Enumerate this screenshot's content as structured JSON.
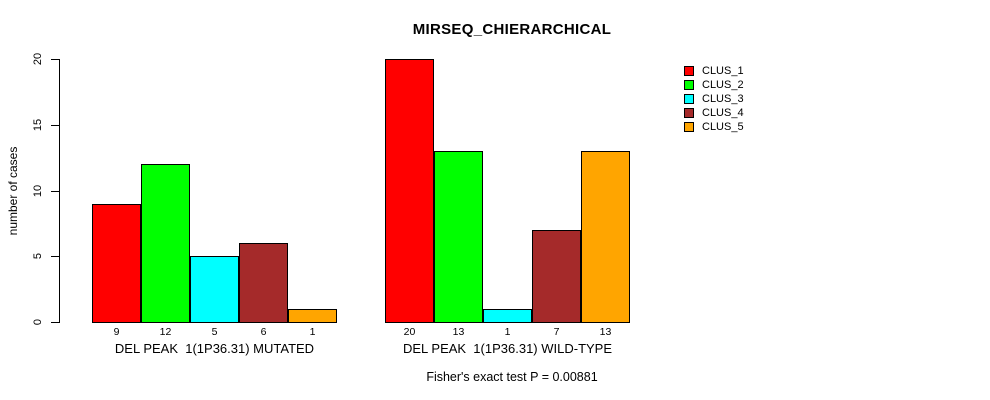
{
  "chart_data": {
    "type": "bar",
    "title": "MIRSEQ_CHIERARCHICAL",
    "ylabel": "number of cases",
    "xlabel": "",
    "ylim": [
      0,
      20
    ],
    "yticks": [
      0,
      5,
      10,
      15,
      20
    ],
    "grid": false,
    "legend_position": "right-inside",
    "categories": [
      "DEL PEAK  1(1P36.31) MUTATED",
      "DEL PEAK  1(1P36.31) WILD-TYPE"
    ],
    "series": [
      {
        "name": "CLUS_1",
        "color": "#FF0000",
        "values": [
          9,
          20
        ]
      },
      {
        "name": "CLUS_2",
        "color": "#00FF00",
        "values": [
          12,
          13
        ]
      },
      {
        "name": "CLUS_3",
        "color": "#00FFFF",
        "values": [
          5,
          1
        ]
      },
      {
        "name": "CLUS_4",
        "color": "#A52A2A",
        "values": [
          6,
          7
        ]
      },
      {
        "name": "CLUS_5",
        "color": "#FFA500",
        "values": [
          1,
          13
        ]
      }
    ],
    "bar_value_labels": {
      "mutated": [
        "9",
        "12",
        "5",
        "6",
        "1"
      ],
      "wild_type": [
        "20",
        "13",
        "1",
        "7",
        "13"
      ]
    },
    "annotation": "Fisher's exact test P = 0.00881"
  },
  "colors": {
    "foreground": "#000000",
    "background": "#FFFFFF"
  }
}
